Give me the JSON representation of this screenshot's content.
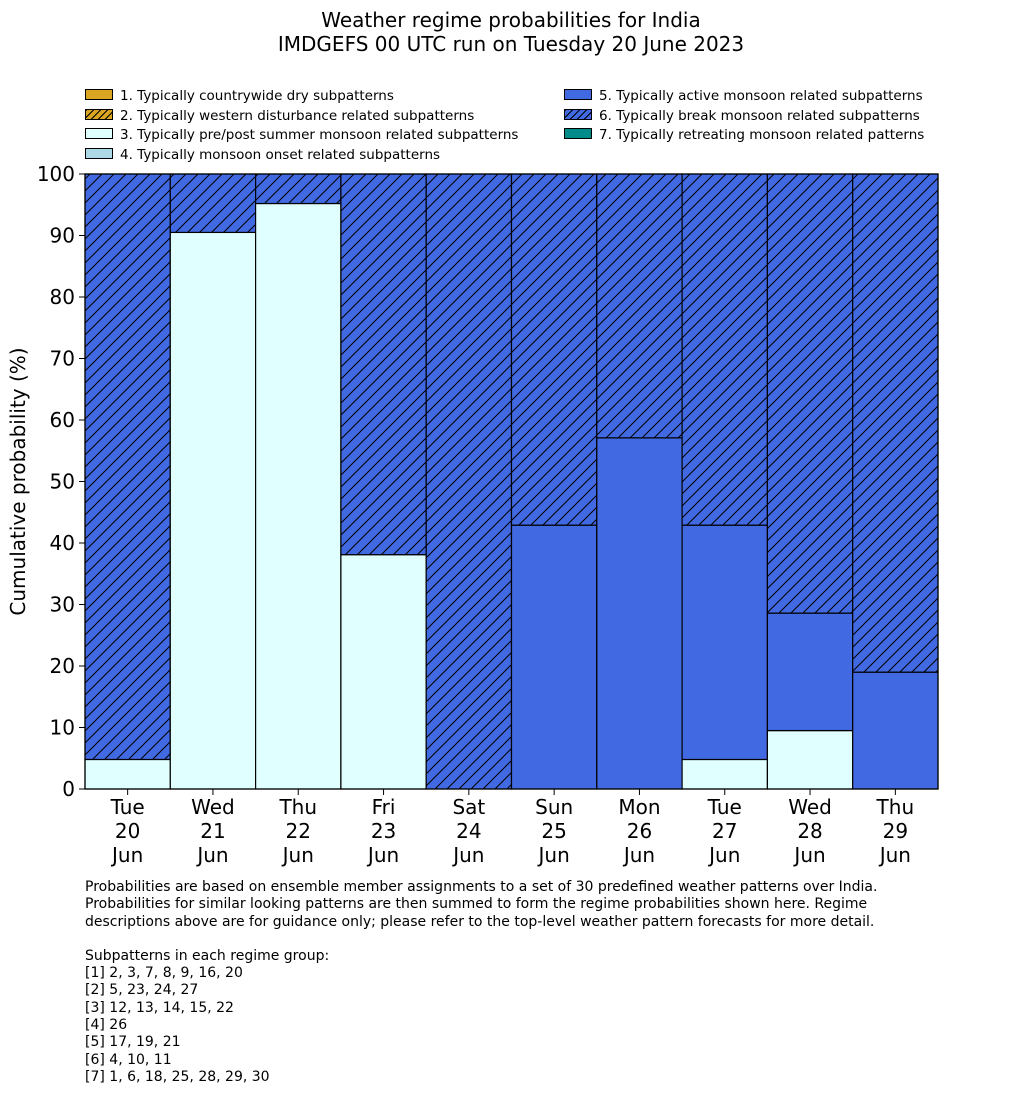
{
  "title_line1": "Weather regime probabilities for India",
  "title_line2": "IMDGEFS 00 UTC run on Tuesday 20 June 2023",
  "colors": {
    "regime1": "#DAA520",
    "regime2": "#DAA520",
    "regime3": "#E0FFFF",
    "regime4": "#ADD8E6",
    "regime5": "#4169E1",
    "regime6": "#4169E1",
    "regime7": "#008B8B"
  },
  "legend": [
    {
      "label": "1. Typically countrywide dry subpatterns",
      "color": "#DAA520",
      "hatch": false
    },
    {
      "label": "2. Typically western disturbance related subpatterns",
      "color": "#DAA520",
      "hatch": true
    },
    {
      "label": "3. Typically pre/post summer monsoon related subpatterns",
      "color": "#E0FFFF",
      "hatch": false
    },
    {
      "label": "4. Typically monsoon onset related subpatterns",
      "color": "#ADD8E6",
      "hatch": false
    },
    {
      "label": "5. Typically active monsoon related subpatterns",
      "color": "#4169E1",
      "hatch": false
    },
    {
      "label": "6. Typically break monsoon related subpatterns",
      "color": "#4169E1",
      "hatch": true
    },
    {
      "label": "7. Typically retreating monsoon related patterns",
      "color": "#008B8B",
      "hatch": false
    }
  ],
  "chart_data": {
    "type": "bar",
    "stacked": true,
    "title": "Weather regime probabilities for India\nIMDGEFS 00 UTC run on Tuesday 20 June 2023",
    "ylabel": "Cumulative probability (%)",
    "ylim": [
      0,
      100
    ],
    "yticks": [
      0,
      10,
      20,
      30,
      40,
      50,
      60,
      70,
      80,
      90,
      100
    ],
    "grid": false,
    "legend_position": "top",
    "categories": [
      [
        "Tue",
        "20",
        "Jun"
      ],
      [
        "Wed",
        "21",
        "Jun"
      ],
      [
        "Thu",
        "22",
        "Jun"
      ],
      [
        "Fri",
        "23",
        "Jun"
      ],
      [
        "Sat",
        "24",
        "Jun"
      ],
      [
        "Sun",
        "25",
        "Jun"
      ],
      [
        "Mon",
        "26",
        "Jun"
      ],
      [
        "Tue",
        "27",
        "Jun"
      ],
      [
        "Wed",
        "28",
        "Jun"
      ],
      [
        "Thu",
        "29",
        "Jun"
      ]
    ],
    "series": [
      {
        "name": "3. Typically pre/post summer monsoon related subpatterns",
        "color": "#E0FFFF",
        "hatch": false,
        "values": [
          4.8,
          90.5,
          95.2,
          38.1,
          0,
          0,
          0,
          4.8,
          9.5,
          0
        ]
      },
      {
        "name": "5. Typically active monsoon related subpatterns",
        "color": "#4169E1",
        "hatch": false,
        "values": [
          0,
          0,
          0,
          0,
          0,
          42.9,
          57.1,
          38.1,
          19.1,
          19.0
        ]
      },
      {
        "name": "6. Typically break monsoon related subpatterns",
        "color": "#4169E1",
        "hatch": true,
        "values": [
          95.2,
          9.5,
          4.8,
          61.9,
          100,
          57.1,
          42.9,
          57.1,
          71.4,
          81.0
        ]
      }
    ]
  },
  "footnote": {
    "line1": "Probabilities are based on ensemble member assignments to a set of 30 predefined weather patterns over India.",
    "line2": "Probabilities for similar looking patterns are then summed to form the regime probabilities shown here. Regime",
    "line3": "descriptions above are for guidance only; please refer to the top-level weather pattern forecasts for more detail.",
    "groups_title": "Subpatterns in each regime group:",
    "groups": [
      "[1] 2, 3, 7, 8, 9, 16, 20",
      "[2] 5, 23, 24, 27",
      "[3] 12, 13, 14, 15, 22",
      "[4] 26",
      "[5] 17, 19, 21",
      "[6] 4, 10, 11",
      "[7] 1, 6, 18, 25, 28, 29, 30"
    ]
  }
}
